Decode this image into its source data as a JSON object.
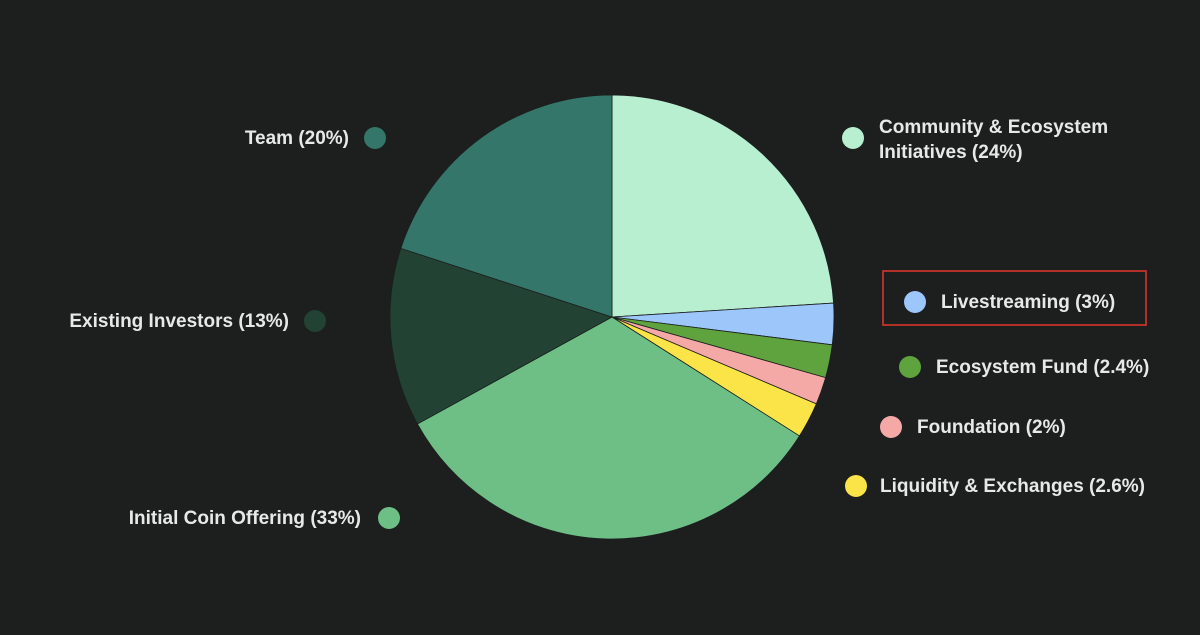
{
  "chart_data": {
    "type": "pie",
    "title": "",
    "start_angle_deg": 90,
    "direction": "clockwise",
    "legend_placement": "around",
    "slices": [
      {
        "label": "Community & Ecosystem Initiatives (24%)",
        "label_lines": [
          "Community & Ecosystem",
          "Initiatives (24%)"
        ],
        "value": 24,
        "color": "#b8efd0"
      },
      {
        "label": "Livestreaming (3%)",
        "label_lines": [
          "Livestreaming (3%)"
        ],
        "value": 3,
        "color": "#9dc6fb",
        "highlighted": true
      },
      {
        "label": "Ecosystem Fund (2.4%)",
        "label_lines": [
          "Ecosystem Fund (2.4%)"
        ],
        "value": 2.4,
        "color": "#5fa33f"
      },
      {
        "label": "Foundation (2%)",
        "label_lines": [
          "Foundation (2%)"
        ],
        "value": 2,
        "color": "#f4a9a6"
      },
      {
        "label": "Liquidity & Exchanges (2.6%)",
        "label_lines": [
          "Liquidity & Exchanges (2.6%)"
        ],
        "value": 2.6,
        "color": "#fae447"
      },
      {
        "label": "Initial Coin Offering (33%)",
        "label_lines": [
          "Initial Coin Offering (33%)"
        ],
        "value": 33,
        "color": "#6ebf86"
      },
      {
        "label": "Existing Investors (13%)",
        "label_lines": [
          "Existing Investors (13%)"
        ],
        "value": 13,
        "color": "#224333"
      },
      {
        "label": "Team (20%)",
        "label_lines": [
          "Team (20%)"
        ],
        "value": 20,
        "color": "#34776a"
      }
    ]
  }
}
